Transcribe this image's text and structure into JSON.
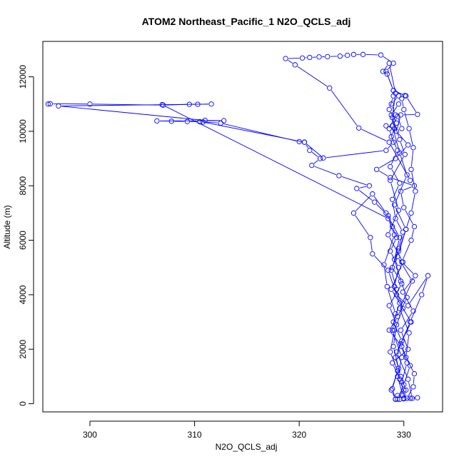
{
  "chart_data": {
    "type": "line",
    "title": "ATOM2 Northeast_Pacific_1 N2O_QCLS_adj",
    "xlabel": "N2O_QCLS_adj",
    "ylabel": "Altitude (m)",
    "xlim": [
      295.5,
      333.7
    ],
    "ylim": [
      -300,
      13300
    ],
    "xticks": [
      300,
      310,
      320,
      330
    ],
    "yticks": [
      0,
      2000,
      4000,
      6000,
      8000,
      10000,
      12000
    ],
    "grid": false,
    "marker": "open-circle",
    "colors": {
      "series": "#0000ff",
      "axis": "#000000"
    },
    "series": [
      {
        "name": "",
        "points": [
          [
            329.6,
            160
          ],
          [
            329.4,
            300
          ],
          [
            330.0,
            500
          ],
          [
            329.6,
            900
          ],
          [
            328.9,
            1500
          ],
          [
            330.4,
            2000
          ],
          [
            329.7,
            2700
          ],
          [
            330.9,
            3400
          ],
          [
            329.9,
            4100
          ],
          [
            331.1,
            4700
          ],
          [
            329.8,
            5200
          ],
          [
            330.7,
            6000
          ],
          [
            331.0,
            6500
          ],
          [
            330.0,
            7200
          ],
          [
            329.7,
            7800
          ],
          [
            331.0,
            8000
          ],
          [
            328.7,
            8300
          ],
          [
            327.4,
            8600
          ],
          [
            329.2,
            9000
          ],
          [
            330.4,
            9500
          ],
          [
            329.3,
            10000
          ],
          [
            329.7,
            10600
          ],
          [
            331.3,
            10620
          ],
          [
            330.2,
            11300
          ],
          [
            329.0,
            11500
          ],
          [
            328.3,
            12200
          ],
          [
            329.0,
            12500
          ],
          [
            327.8,
            12800
          ],
          [
            326.1,
            12820
          ],
          [
            325.2,
            12820
          ],
          [
            324.6,
            12790
          ],
          [
            323.9,
            12760
          ],
          [
            322.7,
            12740
          ],
          [
            321.9,
            12730
          ],
          [
            321.0,
            12710
          ],
          [
            320.3,
            12690
          ],
          [
            318.7,
            12670
          ],
          [
            319.6,
            12440
          ],
          [
            322.9,
            11590
          ],
          [
            325.7,
            10120
          ],
          [
            328.6,
            9600
          ],
          [
            330.6,
            8200
          ]
        ]
      },
      {
        "name": "",
        "points": [
          [
            296.0,
            11000
          ],
          [
            296.2,
            11010
          ],
          [
            300.0,
            11000
          ],
          [
            307.0,
            10960
          ],
          [
            309.5,
            10990
          ],
          [
            310.3,
            10990
          ],
          [
            311.6,
            11000
          ],
          [
            297.0,
            10930
          ],
          [
            311.0,
            10400
          ],
          [
            312.8,
            10390
          ],
          [
            306.4,
            10380
          ],
          [
            307.8,
            10370
          ],
          [
            309.3,
            10360
          ],
          [
            310.5,
            10350
          ],
          [
            312.5,
            10300
          ],
          [
            320.0,
            9620
          ],
          [
            320.5,
            9600
          ],
          [
            321.0,
            9300
          ],
          [
            322.0,
            9000
          ],
          [
            321.2,
            8750
          ],
          [
            323.8,
            8370
          ],
          [
            326.7,
            8000
          ],
          [
            325.5,
            7900
          ],
          [
            327.2,
            7400
          ],
          [
            328.5,
            6900
          ],
          [
            328.9,
            6500
          ],
          [
            329.3,
            6100
          ],
          [
            328.7,
            5600
          ],
          [
            329.5,
            5000
          ],
          [
            329.1,
            4300
          ],
          [
            329.6,
            3700
          ],
          [
            329.0,
            3000
          ],
          [
            329.8,
            2300
          ],
          [
            329.2,
            1700
          ],
          [
            329.7,
            1000
          ],
          [
            330.2,
            500
          ],
          [
            330.0,
            180
          ],
          [
            330.6,
            200
          ],
          [
            331.3,
            220
          ]
        ]
      },
      {
        "name": "",
        "points": [
          [
            310.8,
            10340
          ],
          [
            320.5,
            9600
          ],
          [
            322.3,
            9020
          ],
          [
            328.3,
            9300
          ],
          [
            329.0,
            9600
          ],
          [
            328.6,
            10100
          ],
          [
            329.2,
            10600
          ],
          [
            328.8,
            11000
          ],
          [
            329.5,
            11300
          ],
          [
            330.1,
            11310
          ],
          [
            329.0,
            11500
          ],
          [
            328.4,
            12100
          ],
          [
            328.0,
            12200
          ],
          [
            328.6,
            12500
          ],
          [
            329.2,
            11400
          ],
          [
            328.9,
            10500
          ],
          [
            329.6,
            9700
          ],
          [
            330.1,
            9150
          ],
          [
            328.7,
            8200
          ],
          [
            329.5,
            7100
          ],
          [
            328.5,
            6200
          ],
          [
            329.9,
            5200
          ],
          [
            328.8,
            4200
          ],
          [
            330.7,
            3000
          ],
          [
            329.3,
            1900
          ],
          [
            330.4,
            900
          ],
          [
            330.8,
            200
          ]
        ]
      },
      {
        "name": "",
        "points": [
          [
            306.9,
            10980
          ],
          [
            328.5,
            6800
          ],
          [
            329.1,
            6200
          ],
          [
            328.1,
            5100
          ],
          [
            328.4,
            4300
          ],
          [
            329.2,
            3300
          ],
          [
            328.9,
            2700
          ],
          [
            329.8,
            1700
          ],
          [
            329.4,
            1000
          ],
          [
            329.9,
            300
          ],
          [
            330.3,
            200
          ],
          [
            330.9,
            620
          ],
          [
            331.0,
            1100
          ],
          [
            330.2,
            1700
          ],
          [
            330.5,
            2600
          ],
          [
            329.6,
            3500
          ],
          [
            330.8,
            4500
          ],
          [
            329.4,
            5400
          ],
          [
            330.2,
            6400
          ],
          [
            329.1,
            7300
          ],
          [
            330.3,
            8400
          ],
          [
            329.6,
            9200
          ],
          [
            328.9,
            10200
          ],
          [
            329.4,
            10550
          ],
          [
            329.8,
            10100
          ]
        ]
      },
      {
        "name": "",
        "points": [
          [
            329.2,
            160
          ],
          [
            328.8,
            500
          ],
          [
            329.5,
            1300
          ],
          [
            329.0,
            2100
          ],
          [
            329.3,
            2900
          ],
          [
            328.6,
            3600
          ],
          [
            329.8,
            4400
          ],
          [
            329.1,
            5300
          ],
          [
            329.6,
            6100
          ],
          [
            328.3,
            7000
          ],
          [
            327.0,
            7700
          ],
          [
            325.2,
            7000
          ],
          [
            326.8,
            6100
          ],
          [
            327.0,
            5500
          ],
          [
            328.5,
            4900
          ],
          [
            329.3,
            4000
          ],
          [
            330.4,
            3600
          ],
          [
            332.3,
            4700
          ],
          [
            331.7,
            4000
          ],
          [
            330.6,
            3000
          ],
          [
            329.7,
            2200
          ],
          [
            330.3,
            1500
          ],
          [
            329.8,
            800
          ],
          [
            330.0,
            200
          ]
        ]
      },
      {
        "name": "",
        "points": [
          [
            329.0,
            11300
          ],
          [
            328.6,
            10800
          ],
          [
            329.3,
            10300
          ],
          [
            328.8,
            9800
          ],
          [
            329.4,
            9300
          ],
          [
            328.7,
            8700
          ],
          [
            329.6,
            8100
          ],
          [
            328.9,
            7500
          ],
          [
            329.2,
            6800
          ],
          [
            329.9,
            6300
          ],
          [
            329.5,
            5700
          ],
          [
            328.8,
            4900
          ],
          [
            329.3,
            4200
          ],
          [
            329.9,
            3500
          ],
          [
            329.1,
            2700
          ],
          [
            328.7,
            1900
          ],
          [
            329.4,
            1200
          ],
          [
            328.9,
            550
          ],
          [
            329.2,
            170
          ]
        ]
      },
      {
        "name": "",
        "points": [
          [
            328.3,
            10200
          ],
          [
            329.1,
            10100
          ],
          [
            328.8,
            10600
          ],
          [
            329.5,
            11000
          ],
          [
            329.8,
            11200
          ],
          [
            330.0,
            10800
          ],
          [
            330.5,
            10100
          ],
          [
            330.9,
            9400
          ],
          [
            330.7,
            8600
          ],
          [
            331.1,
            7800
          ],
          [
            330.7,
            7000
          ],
          [
            330.2,
            6400
          ],
          [
            329.5,
            5600
          ],
          [
            328.9,
            5000
          ],
          [
            329.7,
            4500
          ],
          [
            330.3,
            3900
          ],
          [
            329.4,
            3200
          ],
          [
            328.6,
            2700
          ],
          [
            329.8,
            2100
          ],
          [
            330.6,
            1400
          ],
          [
            330.0,
            700
          ],
          [
            329.4,
            170
          ]
        ]
      }
    ]
  }
}
